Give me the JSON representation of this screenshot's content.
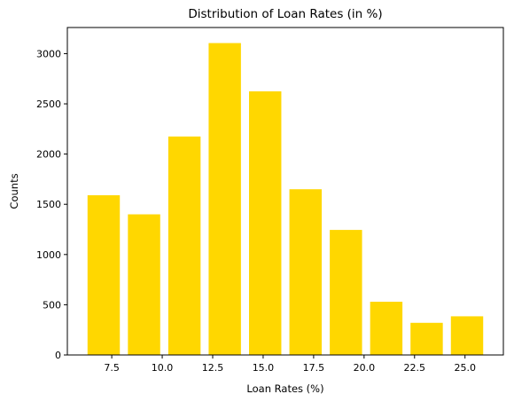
{
  "chart_data": {
    "type": "bar",
    "title": "Distribution of Loan Rates (in %)",
    "xlabel": "Loan Rates (%)",
    "ylabel": "Counts",
    "bar_color": "#FFD700",
    "bar_width": 1.6,
    "x": [
      7.1,
      9.1,
      11.1,
      13.1,
      15.1,
      17.1,
      19.1,
      21.1,
      23.1,
      25.1
    ],
    "values": [
      1590,
      1400,
      2175,
      3105,
      2625,
      1650,
      1245,
      530,
      320,
      385
    ],
    "xlim": [
      5.3,
      26.9
    ],
    "ylim": [
      0,
      3260
    ],
    "xticks": [
      7.5,
      10.0,
      12.5,
      15.0,
      17.5,
      20.0,
      22.5,
      25.0
    ],
    "xtick_labels": [
      "7.5",
      "10.0",
      "12.5",
      "15.0",
      "17.5",
      "20.0",
      "22.5",
      "25.0"
    ],
    "yticks": [
      0,
      500,
      1000,
      1500,
      2000,
      2500,
      3000
    ],
    "ytick_labels": [
      "0",
      "500",
      "1000",
      "1500",
      "2000",
      "2500",
      "3000"
    ],
    "grid": false,
    "legend": false
  }
}
